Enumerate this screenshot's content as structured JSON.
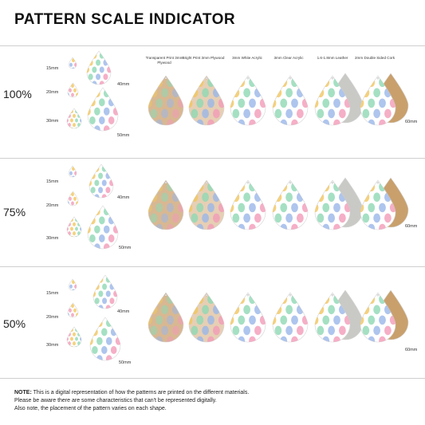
{
  "title": "PATTERN SCALE INDICATOR",
  "materials": [
    {
      "label": "Transparent Print 3mm Plywood"
    },
    {
      "label": "Bright Print 3mm Plywood"
    },
    {
      "label": "3mm White Acrylic"
    },
    {
      "label": "3mm Clear Acrylic"
    },
    {
      "label": "1.6-1.8mm Leather"
    },
    {
      "label": "2mm Double Sided Cork"
    }
  ],
  "sizes": [
    "15mm",
    "20mm",
    "30mm",
    "40mm",
    "50mm"
  ],
  "scales": [
    {
      "percent": "100%",
      "side_size": "60mm"
    },
    {
      "percent": "75%",
      "side_size": "60mm"
    },
    {
      "percent": "50%",
      "side_size": "60mm"
    }
  ],
  "note": {
    "bold": "NOTE:",
    "line1": " This is a digital representation of how the patterns are printed on the different materials.",
    "line2": "Please be aware there are some characteristics that can't be represented digitally.",
    "line3": "Also note, the placement of the pattern varies on each shape."
  },
  "colors": {
    "plywood": "#d8b892",
    "plywood_light": "#e6cfb4",
    "leather_back": "#c9c9c6",
    "cork": "#c9a06c",
    "pattern_pink": "#f29bb8",
    "pattern_yellow": "#f2c65a",
    "pattern_green": "#8ed8b4",
    "pattern_blue": "#9ab6e8"
  }
}
